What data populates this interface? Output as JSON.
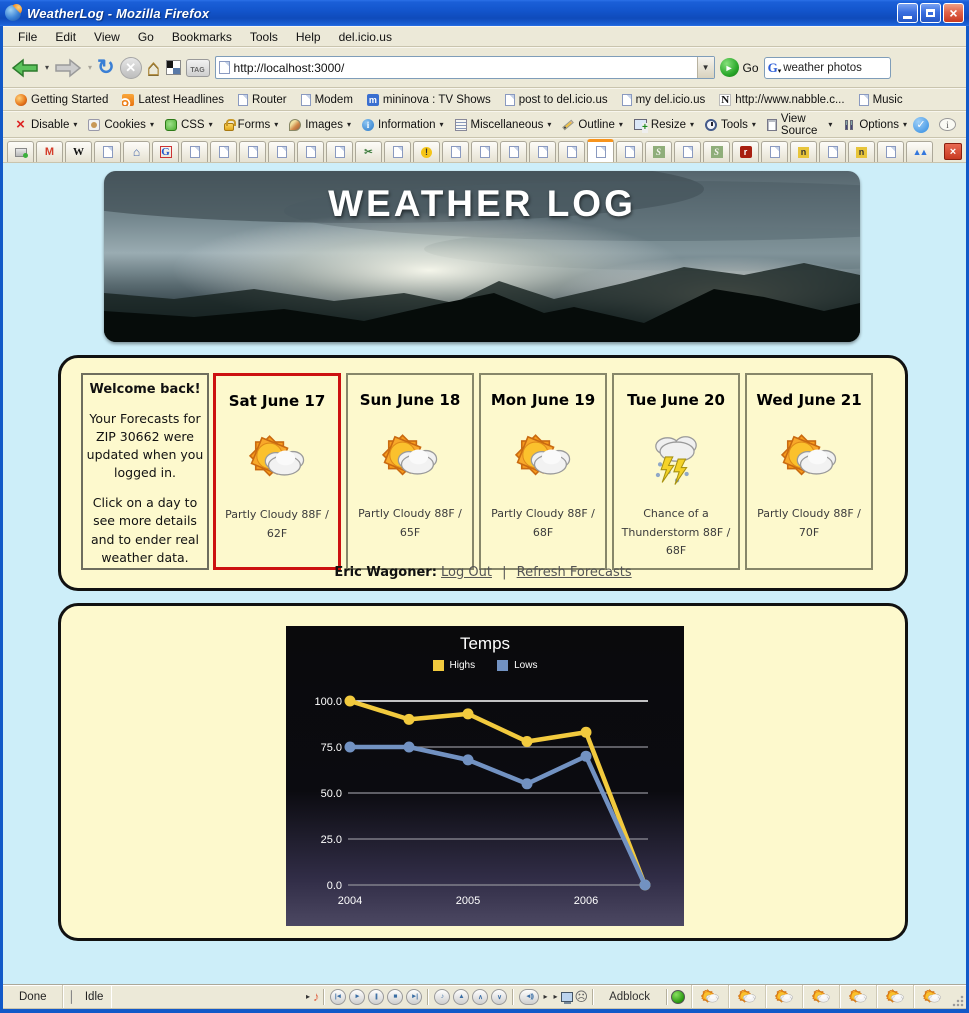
{
  "window": {
    "title": "WeatherLog - Mozilla Firefox",
    "controls": [
      "minimize",
      "maximize",
      "close"
    ]
  },
  "menubar": {
    "items": [
      "File",
      "Edit",
      "View",
      "Go",
      "Bookmarks",
      "Tools",
      "Help",
      "del.icio.us"
    ]
  },
  "navbar": {
    "url": "http://localhost:3000/",
    "go_label": "Go",
    "search_value": "weather photos",
    "tag_label": "TAG"
  },
  "bookmarks": [
    {
      "icon": "getting-started",
      "label": "Getting Started"
    },
    {
      "icon": "rss",
      "label": "Latest Headlines"
    },
    {
      "icon": "doc",
      "label": "Router"
    },
    {
      "icon": "doc",
      "label": "Modem"
    },
    {
      "icon": "mininova",
      "glyph": "m",
      "label": "mininova : TV Shows"
    },
    {
      "icon": "doc",
      "label": "post to del.icio.us"
    },
    {
      "icon": "doc",
      "label": "my del.icio.us"
    },
    {
      "icon": "nabble",
      "glyph": "N",
      "label": "http://www.nabble.c..."
    },
    {
      "icon": "doc",
      "label": "Music"
    }
  ],
  "webdev": {
    "caret": "▾",
    "items": [
      {
        "icon": "disable-x",
        "glyph": "×",
        "label": "Disable"
      },
      {
        "icon": "cookie",
        "label": "Cookies"
      },
      {
        "icon": "css-puzzle",
        "label": "CSS"
      },
      {
        "icon": "lock",
        "label": "Forms"
      },
      {
        "icon": "palette",
        "label": "Images"
      },
      {
        "icon": "info",
        "glyph": "i",
        "label": "Information"
      },
      {
        "icon": "list",
        "label": "Miscellaneous"
      },
      {
        "icon": "pencil",
        "label": "Outline"
      },
      {
        "icon": "resize",
        "label": "Resize"
      },
      {
        "icon": "clock",
        "label": "Tools"
      },
      {
        "icon": "clipboard",
        "label": "View Source"
      },
      {
        "icon": "options",
        "label": "Options"
      }
    ],
    "check_glyph": "✓",
    "bubble_glyph": "i"
  },
  "tabstrip": {
    "tabs": [
      {
        "icon": "printer"
      },
      {
        "icon": "gmail",
        "glyph": "M"
      },
      {
        "icon": "wikipedia",
        "glyph": "W"
      },
      {
        "icon": "doc"
      },
      {
        "icon": "home",
        "glyph": "⌂"
      },
      {
        "icon": "google",
        "glyph": "G"
      },
      {
        "icon": "doc"
      },
      {
        "icon": "doc"
      },
      {
        "icon": "doc"
      },
      {
        "icon": "doc"
      },
      {
        "icon": "doc"
      },
      {
        "icon": "doc"
      },
      {
        "icon": "scissors",
        "glyph": "✂"
      },
      {
        "icon": "doc"
      },
      {
        "icon": "warning",
        "glyph": "!"
      },
      {
        "icon": "doc"
      },
      {
        "icon": "doc"
      },
      {
        "icon": "doc"
      },
      {
        "icon": "doc"
      },
      {
        "icon": "doc"
      },
      {
        "icon": "doc",
        "active": true
      },
      {
        "icon": "doc"
      },
      {
        "icon": "script",
        "glyph": "S"
      },
      {
        "icon": "doc"
      },
      {
        "icon": "script",
        "glyph": "S"
      },
      {
        "icon": "rails",
        "glyph": "r"
      },
      {
        "icon": "doc"
      },
      {
        "icon": "nabble",
        "glyph": "n"
      },
      {
        "icon": "doc"
      },
      {
        "icon": "nabble",
        "glyph": "n"
      },
      {
        "icon": "doc"
      },
      {
        "icon": "mountains",
        "glyph": "▲▲"
      }
    ],
    "close_glyph": "×"
  },
  "page": {
    "header_title": "WEATHER LOG",
    "welcome": {
      "title": "Welcome back!",
      "para1": "Your Forecasts for ZIP 30662 were updated when you logged in.",
      "para2": "Click on a day to see more details and to ender real weather data."
    },
    "days": [
      {
        "title": "Sat June 17",
        "icon": "partly-cloudy",
        "desc": "Partly Cloudy 88F / 62F",
        "selected": true
      },
      {
        "title": "Sun June 18",
        "icon": "partly-cloudy",
        "desc": "Partly Cloudy 88F / 65F",
        "selected": false
      },
      {
        "title": "Mon June 19",
        "icon": "partly-cloudy",
        "desc": "Partly Cloudy 88F / 68F",
        "selected": false
      },
      {
        "title": "Tue June 20",
        "icon": "thunderstorm",
        "desc": "Chance of a Thunderstorm 88F / 68F",
        "selected": false
      },
      {
        "title": "Wed June 21",
        "icon": "partly-cloudy",
        "desc": "Partly Cloudy 88F / 70F",
        "selected": false
      }
    ],
    "user_line": {
      "name": "Eric Wagoner:",
      "logout_label": "Log Out",
      "separator": "|",
      "refresh_label": "Refresh Forecasts"
    }
  },
  "chart_data": {
    "type": "line",
    "title": "Temps",
    "categories": [
      "2004",
      "2004.5",
      "2005",
      "2005.5",
      "2006",
      "2006.5"
    ],
    "x_tick_labels": [
      {
        "index": 0,
        "label": "2004"
      },
      {
        "index": 2,
        "label": "2005"
      },
      {
        "index": 4,
        "label": "2006"
      }
    ],
    "series": [
      {
        "name": "Highs",
        "color": "#f2ca3e",
        "values": [
          100,
          90,
          93,
          78,
          83,
          0
        ]
      },
      {
        "name": "Lows",
        "color": "#7292c2",
        "values": [
          75,
          75,
          68,
          55,
          70,
          0
        ]
      }
    ],
    "ylim": [
      0,
      100
    ],
    "yticks": [
      100,
      75,
      50,
      25,
      0
    ],
    "grid": true,
    "legend_position": "top"
  },
  "statusbar": {
    "done_label": "Done",
    "idle_label": "Idle",
    "adblock_label": "Adblock",
    "media_buttons": [
      {
        "name": "previous-button",
        "glyph": "|◄"
      },
      {
        "name": "play-button",
        "glyph": "►"
      },
      {
        "name": "pause-button",
        "glyph": "||"
      },
      {
        "name": "stop-button",
        "glyph": "■"
      },
      {
        "name": "next-button",
        "glyph": "►|"
      }
    ],
    "extra_buttons": [
      {
        "name": "note-button",
        "glyph": "♪"
      },
      {
        "name": "eject-button",
        "glyph": "▲"
      },
      {
        "name": "up-button",
        "glyph": "∧"
      },
      {
        "name": "down-button",
        "glyph": "∨"
      }
    ],
    "speaker_glyph": "◄))",
    "weather_icon_count": 7
  }
}
